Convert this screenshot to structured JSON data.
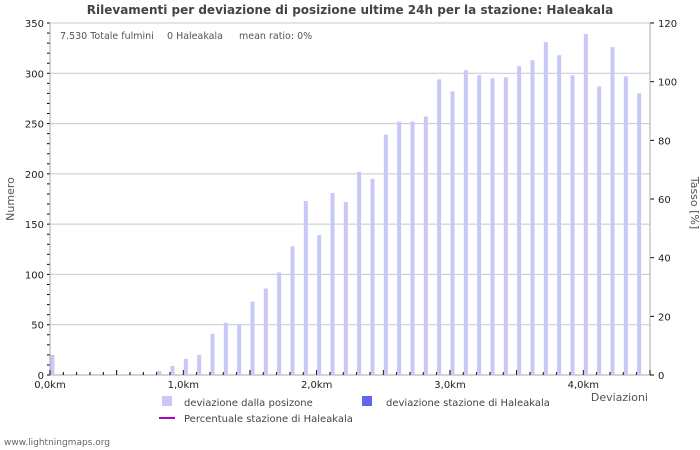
{
  "chart_data": {
    "type": "bar",
    "title": "Rilevamenti per deviazione di posizione ultime 24h per la stazione: Haleakala",
    "info": {
      "total": "7.530 Totale fulmini",
      "station": "0 Haleakala",
      "mean": "mean ratio: 0%"
    },
    "xlabel": "Deviazioni",
    "ylabel": "Numero",
    "y2label": "Tasso [%]",
    "ylim": [
      0,
      350
    ],
    "y2lim": [
      0,
      120
    ],
    "xlim": [
      0,
      4.5
    ],
    "yticks": [
      "0",
      "50",
      "100",
      "150",
      "200",
      "250",
      "300",
      "350"
    ],
    "y2ticks": [
      "0",
      "20",
      "40",
      "60",
      "80",
      "100",
      "120"
    ],
    "xticks": [
      "0,0km",
      "1,0km",
      "2,0km",
      "3,0km",
      "4,0km"
    ],
    "x": [
      0.0,
      0.1,
      0.2,
      0.3,
      0.4,
      0.5,
      0.6,
      0.7,
      0.8,
      0.9,
      1.0,
      1.1,
      1.2,
      1.3,
      1.4,
      1.5,
      1.6,
      1.7,
      1.8,
      1.9,
      2.0,
      2.1,
      2.2,
      2.3,
      2.4,
      2.5,
      2.6,
      2.7,
      2.8,
      2.9,
      3.0,
      3.1,
      3.2,
      3.3,
      3.4,
      3.5,
      3.6,
      3.7,
      3.8,
      3.9,
      4.0,
      4.1,
      4.2,
      4.3,
      4.4
    ],
    "series": [
      {
        "name": "deviazione dalla posizone",
        "color": "#c8c8f8",
        "values": [
          20,
          0,
          1,
          0,
          1,
          0,
          0,
          0,
          4,
          9,
          16,
          20,
          41,
          52,
          50,
          73,
          86,
          102,
          128,
          173,
          139,
          181,
          172,
          202,
          195,
          239,
          252,
          252,
          257,
          294,
          282,
          303,
          298,
          295,
          296,
          307,
          313,
          331,
          318,
          298,
          339,
          287,
          326,
          297,
          280
        ]
      },
      {
        "name": "deviazione stazione di Haleakala",
        "color": "#6464f0",
        "values": [
          0,
          0,
          0,
          0,
          0,
          0,
          0,
          0,
          0,
          0,
          0,
          0,
          0,
          0,
          0,
          0,
          0,
          0,
          0,
          0,
          0,
          0,
          0,
          0,
          0,
          0,
          0,
          0,
          0,
          0,
          0,
          0,
          0,
          0,
          0,
          0,
          0,
          0,
          0,
          0,
          0,
          0,
          0,
          0,
          0
        ]
      },
      {
        "name": "Percentuale stazione di Haleakala",
        "color": "#b000d0",
        "type": "line"
      }
    ]
  },
  "footer": "www.lightningmaps.org"
}
